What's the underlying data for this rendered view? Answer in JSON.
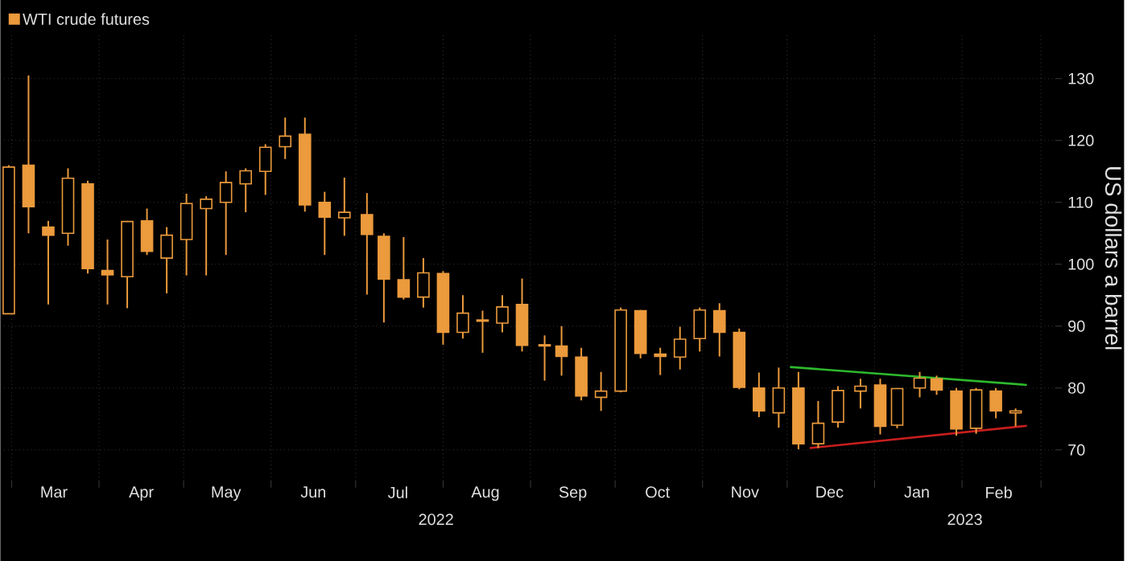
{
  "chart_data": {
    "type": "candlestick",
    "ylabel": "US dollars a barrel",
    "xlim": [
      "2022-02-25",
      "2023-03-06"
    ],
    "ylim": [
      65,
      137
    ],
    "yticks": [
      70,
      80,
      90,
      100,
      110,
      120,
      130
    ],
    "xticks": [
      {
        "value": "2022-03-01",
        "label": null
      },
      {
        "value": "2022-03-16",
        "label": "Mar"
      },
      {
        "value": "2022-04-01",
        "label": null
      },
      {
        "value": "2022-04-16",
        "label": "Apr"
      },
      {
        "value": "2022-05-01",
        "label": null
      },
      {
        "value": "2022-05-16",
        "label": "May"
      },
      {
        "value": "2022-06-01",
        "label": null
      },
      {
        "value": "2022-06-16",
        "label": "Jun"
      },
      {
        "value": "2022-07-01",
        "label": null
      },
      {
        "value": "2022-07-16",
        "label": "Jul"
      },
      {
        "value": "2022-08-01",
        "label": null
      },
      {
        "value": "2022-08-16",
        "label": "Aug"
      },
      {
        "value": "2022-09-01",
        "label": null
      },
      {
        "value": "2022-09-16",
        "label": "Sep"
      },
      {
        "value": "2022-10-01",
        "label": null
      },
      {
        "value": "2022-10-16",
        "label": "Oct"
      },
      {
        "value": "2022-11-01",
        "label": null
      },
      {
        "value": "2022-11-16",
        "label": "Nov"
      },
      {
        "value": "2022-12-01",
        "label": null
      },
      {
        "value": "2022-12-16",
        "label": "Dec"
      },
      {
        "value": "2023-01-01",
        "label": null
      },
      {
        "value": "2023-01-16",
        "label": "Jan"
      },
      {
        "value": "2023-02-01",
        "label": null
      },
      {
        "value": "2023-02-14",
        "label": "Feb"
      },
      {
        "value": "2023-03-01",
        "label": null
      }
    ],
    "annotations": [
      "2022",
      "2023"
    ],
    "grid": true,
    "legend": "top left",
    "series": [
      {
        "name": "WTI crude futures",
        "color": "#eb9a3c",
        "x": [
          "2022-02-28",
          "2022-03-07",
          "2022-03-14",
          "2022-03-21",
          "2022-03-28",
          "2022-04-04",
          "2022-04-11",
          "2022-04-18",
          "2022-04-25",
          "2022-05-02",
          "2022-05-09",
          "2022-05-16",
          "2022-05-23",
          "2022-05-30",
          "2022-06-06",
          "2022-06-13",
          "2022-06-20",
          "2022-06-27",
          "2022-07-05",
          "2022-07-11",
          "2022-07-18",
          "2022-07-25",
          "2022-08-01",
          "2022-08-08",
          "2022-08-15",
          "2022-08-22",
          "2022-08-29",
          "2022-09-06",
          "2022-09-12",
          "2022-09-19",
          "2022-09-26",
          "2022-10-03",
          "2022-10-10",
          "2022-10-17",
          "2022-10-24",
          "2022-10-31",
          "2022-11-07",
          "2022-11-14",
          "2022-11-21",
          "2022-11-28",
          "2022-12-05",
          "2022-12-12",
          "2022-12-19",
          "2022-12-27",
          "2023-01-03",
          "2023-01-09",
          "2023-01-17",
          "2023-01-23",
          "2023-01-30",
          "2023-02-06",
          "2023-02-13",
          "2023-02-20"
        ],
        "ohlc": [
          [
            92,
            116,
            92,
            115.7
          ],
          [
            116,
            130.5,
            105,
            109.3
          ],
          [
            106,
            107,
            93.5,
            104.7
          ],
          [
            105,
            115.5,
            103,
            113.9
          ],
          [
            113,
            113.5,
            98.5,
            99.3
          ],
          [
            99,
            104,
            93.5,
            98.3
          ],
          [
            98,
            107,
            92.9,
            106.9
          ],
          [
            107,
            109,
            101.5,
            102.1
          ],
          [
            101,
            106,
            95.3,
            104.7
          ],
          [
            104,
            111.4,
            98.2,
            109.8
          ],
          [
            109,
            111,
            98.2,
            110.5
          ],
          [
            110,
            115,
            101.5,
            113.2
          ],
          [
            113,
            115.5,
            108.4,
            115.1
          ],
          [
            115,
            119.4,
            111.2,
            118.9
          ],
          [
            119,
            123.7,
            117,
            120.7
          ],
          [
            121,
            123.7,
            108.5,
            109.6
          ],
          [
            110,
            111.7,
            101.5,
            107.6
          ],
          [
            107.5,
            114,
            104.6,
            108.4
          ],
          [
            108,
            111.5,
            95.1,
            104.8
          ],
          [
            104.5,
            105,
            90.6,
            97.6
          ],
          [
            97.5,
            104.4,
            94.3,
            94.7
          ],
          [
            94.7,
            101,
            93,
            98.6
          ],
          [
            98.5,
            98.9,
            87,
            89
          ],
          [
            89,
            95,
            88,
            92.1
          ],
          [
            91,
            92.5,
            85.7,
            90.8
          ],
          [
            90.5,
            95,
            89,
            93.1
          ],
          [
            93.5,
            97.7,
            85.9,
            86.9
          ],
          [
            87,
            88.5,
            81.2,
            86.8
          ],
          [
            86.8,
            90,
            82,
            85.1
          ],
          [
            85,
            86.5,
            78,
            78.7
          ],
          [
            78.5,
            82.6,
            76.3,
            79.5
          ],
          [
            79.5,
            93,
            79.3,
            92.6
          ],
          [
            92.5,
            92.6,
            84.8,
            85.6
          ],
          [
            85.5,
            86.5,
            82.1,
            85.1
          ],
          [
            85,
            89.9,
            83,
            87.9
          ],
          [
            88,
            93,
            85.9,
            92.6
          ],
          [
            92.5,
            93.7,
            85.1,
            89
          ],
          [
            89,
            89.6,
            79.8,
            80.1
          ],
          [
            80,
            82.5,
            75.3,
            76.3
          ],
          [
            76,
            83.3,
            73.6,
            80
          ],
          [
            80,
            82.6,
            70.1,
            71
          ],
          [
            71,
            77.9,
            70.3,
            74.3
          ],
          [
            74.5,
            80.3,
            73.6,
            79.6
          ],
          [
            79.5,
            81.5,
            76.7,
            80.3
          ],
          [
            80.5,
            81.5,
            72.5,
            73.8
          ],
          [
            74,
            80,
            73.5,
            79.9
          ],
          [
            80,
            82.6,
            78.5,
            81.6
          ],
          [
            81.5,
            82,
            78.9,
            79.7
          ],
          [
            79.5,
            80,
            72.3,
            73.4
          ],
          [
            73.5,
            80,
            72.6,
            79.7
          ],
          [
            79.5,
            80,
            75.1,
            76.3
          ],
          [
            76,
            76.7,
            73.8,
            76.3
          ]
        ]
      },
      {
        "type": "line",
        "color": "#2db82d",
        "x": [
          "2022-12-02",
          "2023-02-24"
        ],
        "values": [
          83.4,
          80.5
        ]
      },
      {
        "type": "line",
        "color": "#c81e1e",
        "x": [
          "2022-12-09",
          "2023-02-24"
        ],
        "values": [
          70.3,
          73.9
        ]
      }
    ]
  }
}
